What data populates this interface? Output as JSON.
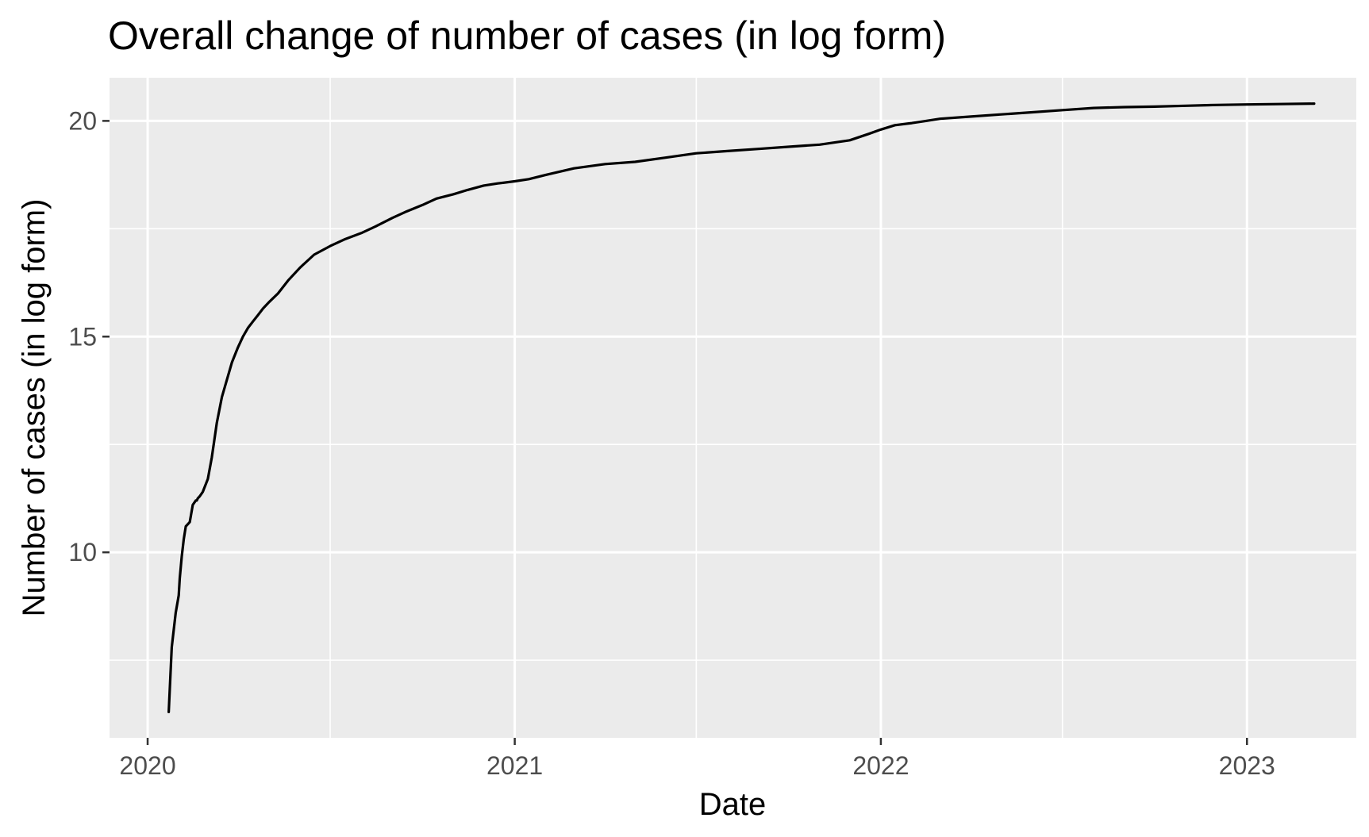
{
  "chart_data": {
    "type": "line",
    "title": "Overall change of number of cases (in log form)",
    "xlabel": "Date",
    "ylabel": "Number of cases (in log form)",
    "x_axis": "date",
    "xlim": [
      "2019-11-24",
      "2023-04-20"
    ],
    "ylim": [
      5.7,
      21.0
    ],
    "x_ticks": [
      {
        "value": "2020-01-01",
        "label": "2020"
      },
      {
        "value": "2021-01-01",
        "label": "2021"
      },
      {
        "value": "2022-01-01",
        "label": "2022"
      },
      {
        "value": "2023-01-01",
        "label": "2023"
      }
    ],
    "x_minor_ticks": [
      "2020-07-01",
      "2021-07-01",
      "2022-07-01"
    ],
    "y_ticks": [
      {
        "value": 10,
        "label": "10"
      },
      {
        "value": 15,
        "label": "15"
      },
      {
        "value": 20,
        "label": "20"
      }
    ],
    "y_minor_ticks": [
      7.5,
      12.5,
      17.5
    ],
    "grid": true,
    "legend": "none",
    "colors": {
      "panel_background": "#ebebeb",
      "grid": "#ffffff",
      "line": "#000000",
      "tick_text": "#4d4d4d",
      "tick_mark": "#333333"
    },
    "series": [
      {
        "x": [
          "2020-01-22",
          "2020-01-25",
          "2020-01-29",
          "2020-02-01",
          "2020-02-02",
          "2020-02-04",
          "2020-02-06",
          "2020-02-08",
          "2020-02-12",
          "2020-02-15",
          "2020-02-18",
          "2020-02-19",
          "2020-02-20",
          "2020-02-22",
          "2020-02-25",
          "2020-03-01",
          "2020-03-05",
          "2020-03-10",
          "2020-03-15",
          "2020-03-20",
          "2020-03-25",
          "2020-03-31",
          "2020-04-05",
          "2020-04-10",
          "2020-04-15",
          "2020-04-20",
          "2020-04-25",
          "2020-05-01",
          "2020-05-10",
          "2020-05-20",
          "2020-06-01",
          "2020-06-15",
          "2020-07-01",
          "2020-07-15",
          "2020-08-01",
          "2020-08-15",
          "2020-09-01",
          "2020-09-15",
          "2020-10-01",
          "2020-10-15",
          "2020-11-01",
          "2020-11-15",
          "2020-12-01",
          "2020-12-15",
          "2021-01-01",
          "2021-01-15",
          "2021-02-01",
          "2021-03-01",
          "2021-04-01",
          "2021-05-01",
          "2021-06-01",
          "2021-07-01",
          "2021-08-01",
          "2021-09-01",
          "2021-10-01",
          "2021-11-01",
          "2021-12-01",
          "2021-12-20",
          "2022-01-01",
          "2022-01-15",
          "2022-02-01",
          "2022-02-15",
          "2022-03-01",
          "2022-04-01",
          "2022-05-01",
          "2022-06-01",
          "2022-07-01",
          "2022-08-01",
          "2022-09-01",
          "2022-10-01",
          "2022-11-01",
          "2022-12-01",
          "2023-01-01",
          "2023-02-01",
          "2023-03-09"
        ],
        "y": [
          6.3,
          7.8,
          8.6,
          9.0,
          9.4,
          9.9,
          10.3,
          10.6,
          10.7,
          11.1,
          11.2,
          11.2,
          11.25,
          11.3,
          11.4,
          11.7,
          12.2,
          13.0,
          13.6,
          14.0,
          14.4,
          14.75,
          15.0,
          15.2,
          15.35,
          15.5,
          15.65,
          15.8,
          16.0,
          16.3,
          16.6,
          16.9,
          17.1,
          17.25,
          17.4,
          17.55,
          17.75,
          17.9,
          18.05,
          18.2,
          18.3,
          18.4,
          18.5,
          18.55,
          18.6,
          18.65,
          18.75,
          18.9,
          19.0,
          19.05,
          19.15,
          19.25,
          19.3,
          19.35,
          19.4,
          19.45,
          19.55,
          19.7,
          19.8,
          19.9,
          19.95,
          20.0,
          20.05,
          20.1,
          20.15,
          20.2,
          20.25,
          20.3,
          20.32,
          20.33,
          20.35,
          20.37,
          20.38,
          20.39,
          20.4
        ]
      }
    ]
  }
}
